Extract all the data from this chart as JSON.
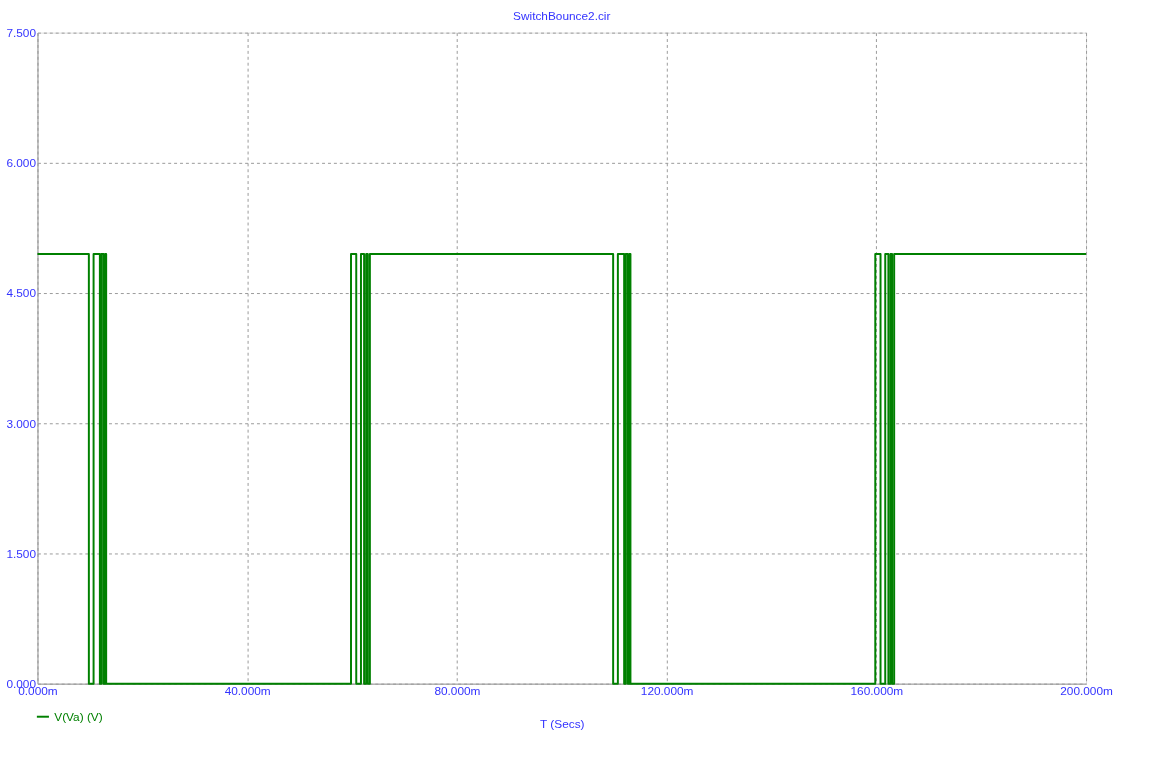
{
  "chart_data": {
    "type": "step",
    "title": "SwitchBounce2.cir",
    "xlabel": "T (Secs)",
    "x": [
      0,
      9.8,
      10.7,
      11.9,
      12.2,
      12.6,
      12.9,
      13.1,
      59.8,
      60.8,
      61.7,
      62.3,
      62.7,
      63.0,
      63.4,
      109.8,
      110.7,
      111.9,
      112.2,
      112.6,
      112.9,
      113.1,
      159.8,
      160.8,
      161.7,
      162.3,
      162.7,
      163.0,
      163.4,
      200
    ],
    "series": [
      {
        "name": "V(Va) (V)",
        "color": "#008000",
        "values": [
          4.95,
          0,
          4.95,
          0,
          4.95,
          0,
          4.95,
          0,
          4.95,
          0,
          4.95,
          0,
          4.95,
          0,
          4.95,
          0,
          4.95,
          0,
          4.95,
          0,
          4.95,
          0,
          4.95,
          0,
          4.95,
          0,
          4.95,
          0,
          4.95,
          4.95
        ]
      }
    ],
    "xlim": [
      0,
      200
    ],
    "xticks": [
      {
        "value": 0,
        "label": "0.000m"
      },
      {
        "value": 40,
        "label": "40.000m"
      },
      {
        "value": 80,
        "label": "80.000m"
      },
      {
        "value": 120,
        "label": "120.000m"
      },
      {
        "value": 160,
        "label": "160.000m"
      },
      {
        "value": 200,
        "label": "200.000m"
      }
    ],
    "ylim": [
      0,
      7.5
    ],
    "yticks": [
      {
        "value": 0,
        "label": "0.000"
      },
      {
        "value": 1.5,
        "label": "1.500"
      },
      {
        "value": 3,
        "label": "3.000"
      },
      {
        "value": 4.5,
        "label": "4.500"
      },
      {
        "value": 6,
        "label": "6.000"
      },
      {
        "value": 7.5,
        "label": "7.500"
      }
    ],
    "grid": true,
    "legend": "bottom left",
    "line_style": "solid",
    "marker": "none"
  }
}
